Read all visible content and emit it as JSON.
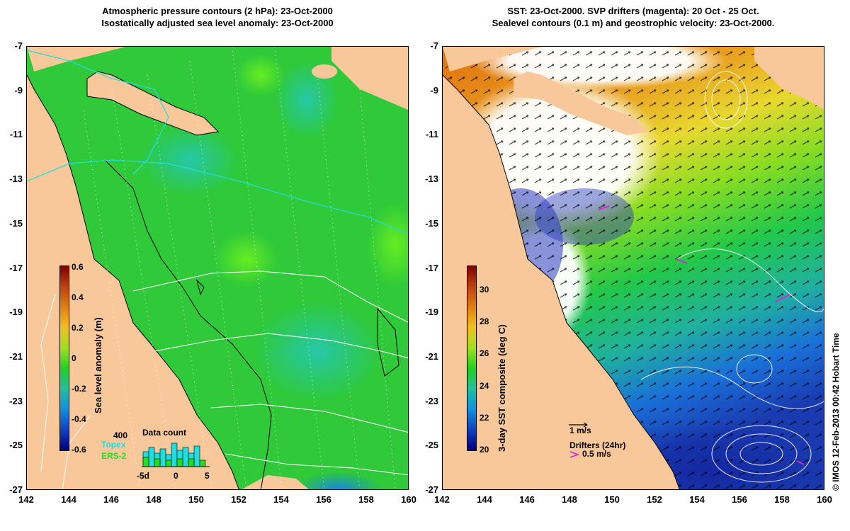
{
  "left_panel": {
    "title_line1": "Atmospheric pressure contours (2 hPa): 23-Oct-2000",
    "title_line2": "Isostatically adjusted sea level anomaly: 23-Oct-2000",
    "colorbar": {
      "label": "Sea level anomaly (m)",
      "ticks": [
        "0.6",
        "0.4",
        "0.2",
        "0",
        "-0.2",
        "-0.4",
        "-0.6"
      ]
    },
    "histogram": {
      "title": "Data count",
      "ymax_label": "400",
      "legend_topex": "Topex",
      "legend_ers2": "ERS-2",
      "xticks": [
        "-5d",
        "0",
        "5"
      ],
      "topex_color": "#22dddd",
      "ers2_color": "#22dd22"
    }
  },
  "right_panel": {
    "title_line1": "SST: 23-Oct-2000. SVP drifters (magenta): 20 Oct - 25 Oct.",
    "title_line2": "Sealevel contours (0.1 m) and geostrophic velocity: 23-Oct-2000.",
    "colorbar": {
      "label": "3-day SST composite (deg C)",
      "ticks": [
        "30",
        "28",
        "26",
        "24",
        "22",
        "20"
      ]
    },
    "velocity_scale_label": "1 m/s",
    "drifters_label": "Drifters (24hr)",
    "drifters_speed_label": "0.5 m/s"
  },
  "axes": {
    "x_ticks": [
      "142",
      "144",
      "146",
      "148",
      "150",
      "152",
      "154",
      "156",
      "158",
      "160"
    ],
    "y_ticks": [
      "-7",
      "-9",
      "-11",
      "-13",
      "-15",
      "-17",
      "-19",
      "-21",
      "-23",
      "-25",
      "-27"
    ]
  },
  "credit": "© IMOS 12-Feb-2013 00:42 Hobart Time",
  "colors": {
    "land": "#f8c89a",
    "ocean_anomaly": "#22cc22",
    "sst_warm": "#e07010",
    "sst_cool": "#1a40c0"
  }
}
